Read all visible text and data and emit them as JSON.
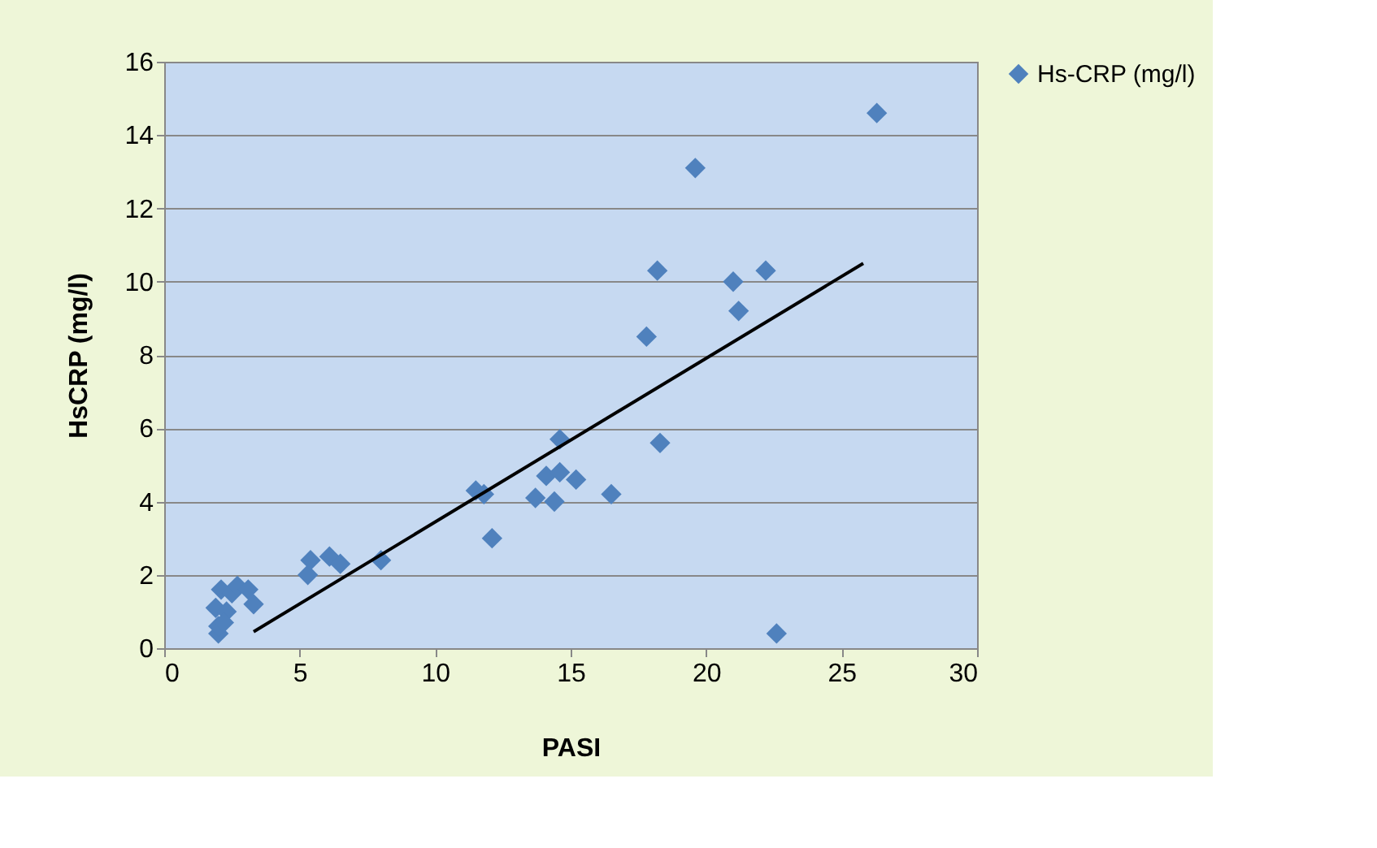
{
  "chart_data": {
    "type": "scatter",
    "xlabel": "PASI",
    "ylabel": "HsCRP (mg/l)",
    "xlim": [
      0,
      30
    ],
    "xticks": [
      0,
      5,
      10,
      15,
      20,
      25,
      30
    ],
    "ylim": [
      0,
      16
    ],
    "yticks": [
      0,
      2,
      4,
      6,
      8,
      10,
      12,
      14,
      16
    ],
    "grid": "y",
    "legend": "right",
    "series": [
      {
        "name": "Hs-CRP (mg/l)",
        "color": "#4f81bd",
        "marker": "diamond",
        "x": [
          2.0,
          2.0,
          1.9,
          2.1,
          2.3,
          2.5,
          2.7,
          3.1,
          3.3,
          2.2,
          5.3,
          5.4,
          6.1,
          6.5,
          8.0,
          11.5,
          11.8,
          12.1,
          13.7,
          14.1,
          14.4,
          14.6,
          14.6,
          15.2,
          16.5,
          17.8,
          18.2,
          18.3,
          19.6,
          21.0,
          21.2,
          22.2,
          22.6,
          26.3
        ],
        "values": [
          0.4,
          0.6,
          1.1,
          1.6,
          1.0,
          1.5,
          1.7,
          1.6,
          1.2,
          0.7,
          2.0,
          2.4,
          2.5,
          2.3,
          2.4,
          4.3,
          4.2,
          3.0,
          4.1,
          4.7,
          4.0,
          5.7,
          4.8,
          4.6,
          4.2,
          8.5,
          10.3,
          5.6,
          13.1,
          10.0,
          9.2,
          10.3,
          0.4,
          14.6
        ]
      },
      {
        "color": "#000000",
        "type": "line",
        "line_style": "solid",
        "marker": "none",
        "x": [
          3.3,
          25.8
        ],
        "values": [
          0.45,
          10.5
        ]
      }
    ]
  }
}
